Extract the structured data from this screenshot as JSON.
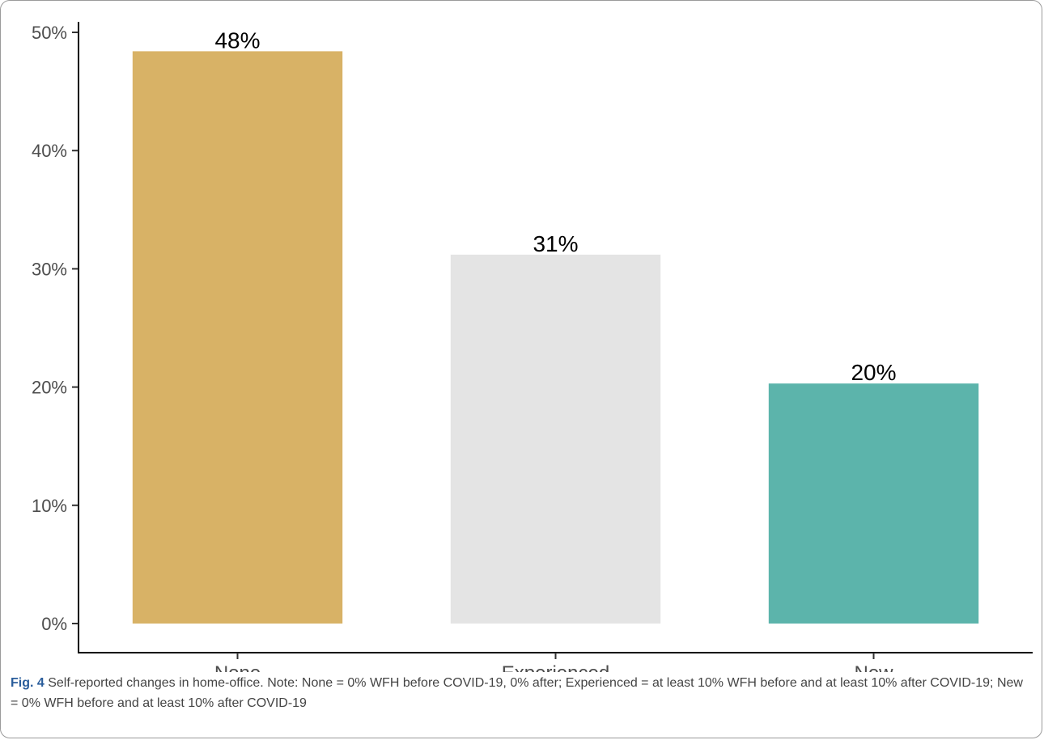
{
  "chart_data": {
    "type": "bar",
    "categories": [
      "None",
      "Experienced",
      "New"
    ],
    "values": [
      48.4,
      31.2,
      20.3
    ],
    "value_labels": [
      "48%",
      "31%",
      "20%"
    ],
    "colors": [
      "#d8b266",
      "#e4e4e4",
      "#5cb4ab"
    ],
    "ylim": [
      0,
      50
    ],
    "yticks": [
      0,
      10,
      20,
      30,
      40,
      50
    ],
    "ytick_labels": [
      "0%",
      "10%",
      "20%",
      "30%",
      "40%",
      "50%"
    ],
    "grid": false,
    "legend": "none"
  },
  "caption": {
    "label": "Fig. 4",
    "text": " Self-reported changes in home-office. Note: None = 0% WFH before COVID-19, 0% after; Experienced = at least 10% WFH before and at least 10% after COVID-19; New = 0% WFH before and at least 10% after COVID-19"
  }
}
